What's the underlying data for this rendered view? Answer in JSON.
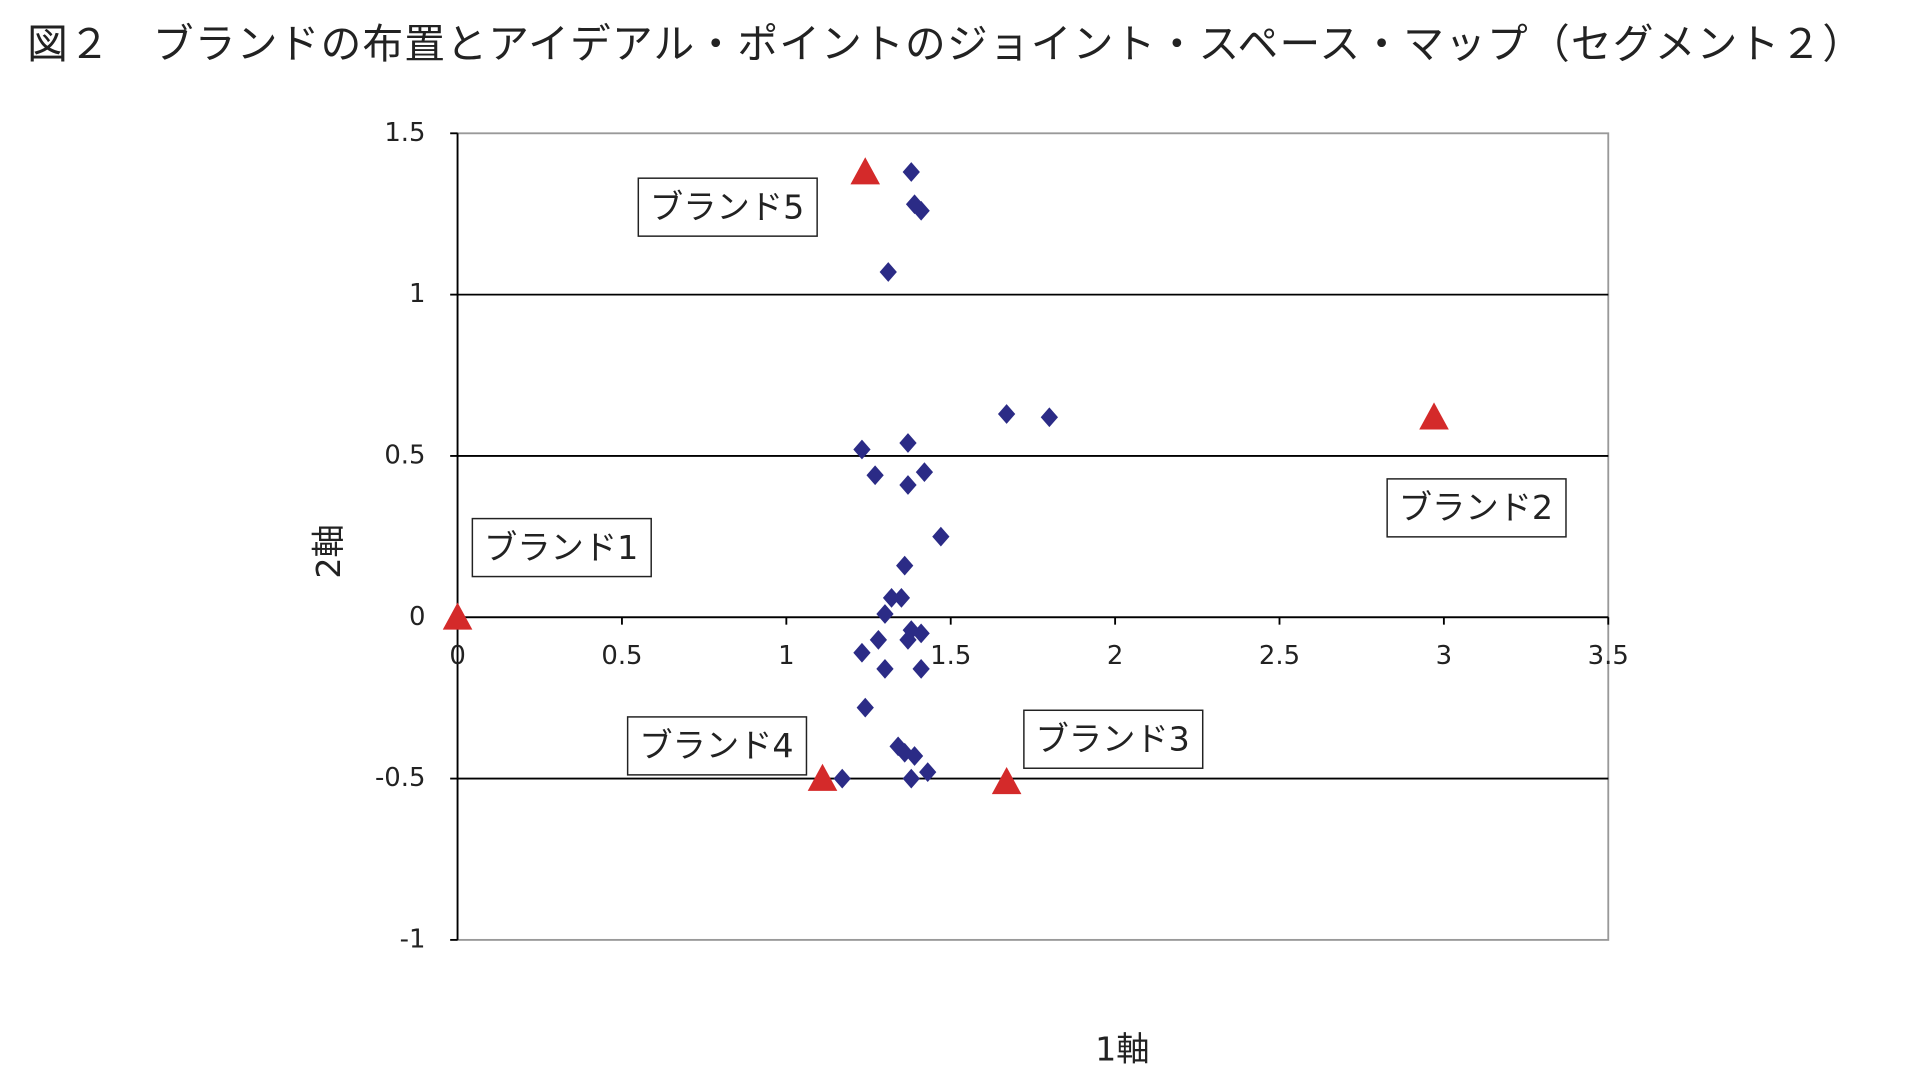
{
  "chart_data": {
    "type": "scatter",
    "title": "図２　ブランドの布置とアイデアル・ポイントのジョイント・スペース・マップ（セグメント２）",
    "x_label": "1軸",
    "y_label": "2軸",
    "xlim": [
      0,
      3.5
    ],
    "ylim": [
      -1,
      1.5
    ],
    "xticks": [
      0,
      0.5,
      1,
      1.5,
      2,
      2.5,
      3,
      3.5
    ],
    "yticks": [
      -1,
      -0.5,
      0,
      0.5,
      1,
      1.5
    ],
    "grid": true,
    "series": [
      {
        "color": "#2b2b86",
        "marker": "diamond",
        "x": [
          1.38,
          1.39,
          1.41,
          1.31,
          1.67,
          1.8,
          1.23,
          1.37,
          1.27,
          1.42,
          1.37,
          1.47,
          1.36,
          1.32,
          1.35,
          1.3,
          1.38,
          1.41,
          1.37,
          1.28,
          1.23,
          1.3,
          1.41,
          1.24,
          1.34,
          1.36,
          1.39,
          1.38,
          1.43,
          1.17
        ],
        "values": [
          1.38,
          1.28,
          1.26,
          1.07,
          0.63,
          0.62,
          0.52,
          0.54,
          0.44,
          0.45,
          0.41,
          0.25,
          0.16,
          0.06,
          0.06,
          0.01,
          -0.04,
          -0.05,
          -0.07,
          -0.07,
          -0.11,
          -0.16,
          -0.16,
          -0.28,
          -0.4,
          -0.42,
          -0.43,
          -0.5,
          -0.48,
          -0.5
        ]
      },
      {
        "color": "#d42a2a",
        "marker": "triangle",
        "labels": [
          "ブランド1",
          "ブランド2",
          "ブランド3",
          "ブランド4",
          "ブランド5"
        ],
        "x": [
          0,
          2.97,
          1.67,
          1.11,
          1.24
        ],
        "values": [
          0,
          0.62,
          -0.51,
          -0.5,
          1.38
        ]
      }
    ]
  }
}
